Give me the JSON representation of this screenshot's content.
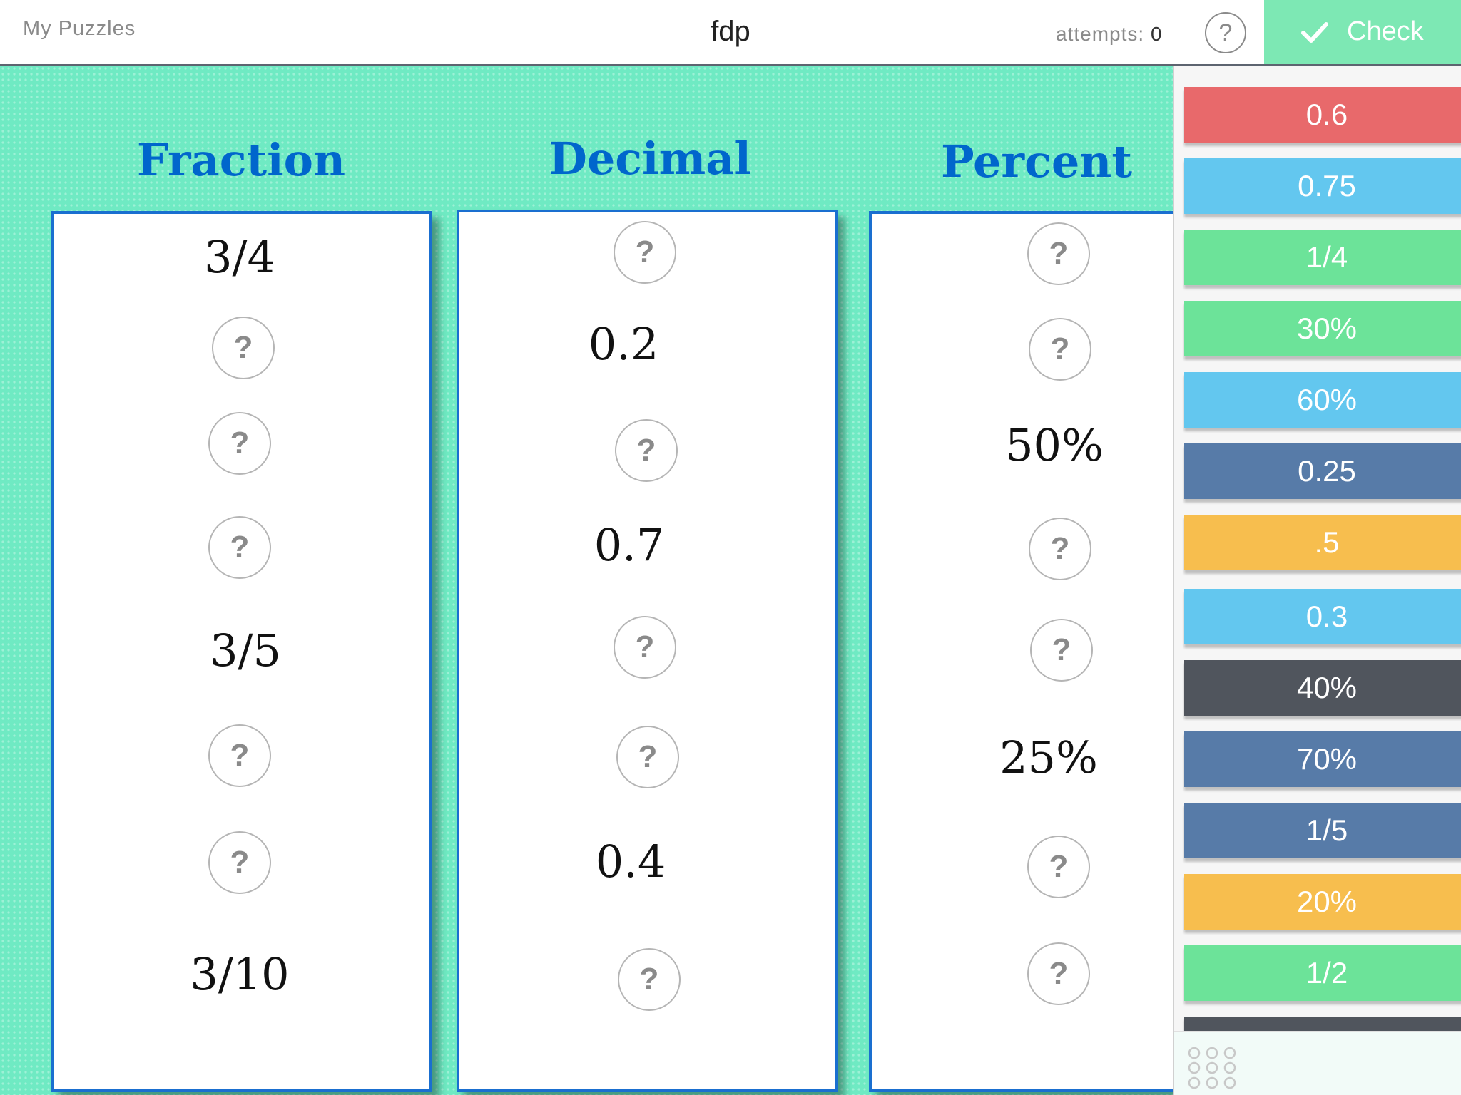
{
  "header": {
    "my_puzzles": "My Puzzles",
    "title": "fdp",
    "attempts_label": "attempts:",
    "attempts_count": "0",
    "help_label": "?",
    "check_label": "Check"
  },
  "columns": [
    {
      "heading": "Fraction",
      "cells": [
        "3/4",
        "?",
        "?",
        "?",
        "3/5",
        "?",
        "?",
        "3/10"
      ]
    },
    {
      "heading": "Decimal",
      "cells": [
        "?",
        "0.2",
        "?",
        "0.7",
        "?",
        "?",
        "0.4",
        "?"
      ]
    },
    {
      "heading": "Percent",
      "cells": [
        "?",
        "?",
        "50%",
        "?",
        "?",
        "25%",
        "?",
        "?"
      ]
    }
  ],
  "tiles": [
    {
      "label": "0.6",
      "color": "#e8696b"
    },
    {
      "label": "0.75",
      "color": "#63c7ef"
    },
    {
      "label": "1/4",
      "color": "#6ce399"
    },
    {
      "label": "30%",
      "color": "#6ce399"
    },
    {
      "label": "60%",
      "color": "#63c7ef"
    },
    {
      "label": "0.25",
      "color": "#577ba8"
    },
    {
      "label": ".5",
      "color": "#f7be4e"
    },
    {
      "label": "0.3",
      "color": "#63c7ef"
    },
    {
      "label": "40%",
      "color": "#50555d"
    },
    {
      "label": "70%",
      "color": "#577ba8"
    },
    {
      "label": "1/5",
      "color": "#577ba8"
    },
    {
      "label": "20%",
      "color": "#f7be4e"
    },
    {
      "label": "1/2",
      "color": "#6ce399"
    },
    {
      "label": "",
      "color": "#50555d"
    }
  ],
  "colors": {
    "board": "#6feac3",
    "heading": "#0066cc",
    "column_border": "#1a6fd0",
    "check_button": "#7de8b4"
  }
}
